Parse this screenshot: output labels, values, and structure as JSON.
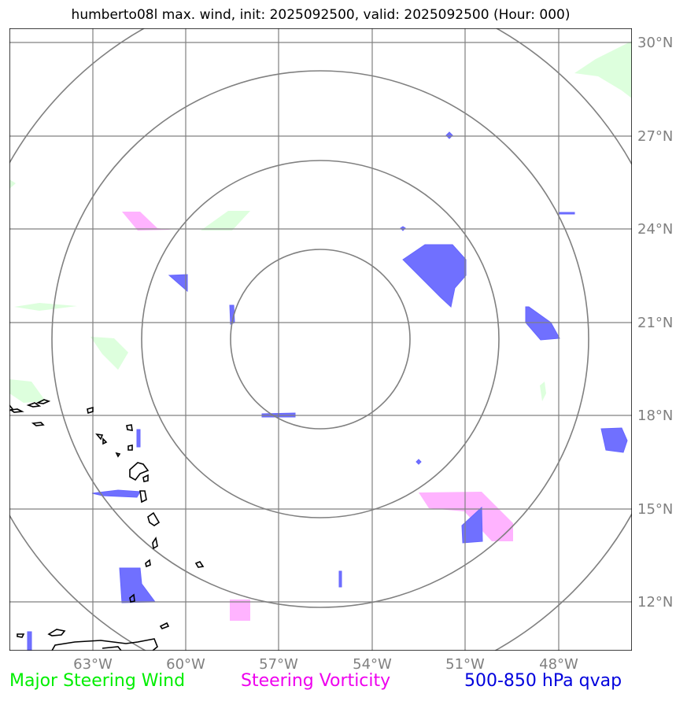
{
  "title": "humberto08l max. wind, init: 2025092500, valid: 2025092500 (Hour: 000)",
  "map": {
    "lon_range": [
      -65,
      -46.5
    ],
    "lat_range": [
      10.5,
      30.5
    ],
    "center": {
      "lon": -55.7,
      "lat": 20.6
    },
    "range_rings_deg": [
      2.9,
      5.6,
      8.3,
      11.0
    ],
    "lon_ticks": [
      {
        "value": -63,
        "label": "63°W"
      },
      {
        "value": -60,
        "label": "60°W"
      },
      {
        "value": -57,
        "label": "57°W"
      },
      {
        "value": -54,
        "label": "54°W"
      },
      {
        "value": -51,
        "label": "51°W"
      },
      {
        "value": -48,
        "label": "48°W"
      }
    ],
    "lat_ticks": [
      {
        "value": 12,
        "label": "12°N"
      },
      {
        "value": 15,
        "label": "15°N"
      },
      {
        "value": 18,
        "label": "18°N"
      },
      {
        "value": 21,
        "label": "21°N"
      },
      {
        "value": 24,
        "label": "24°N"
      },
      {
        "value": 27,
        "label": "27°N"
      },
      {
        "value": 30,
        "label": "30°N"
      }
    ],
    "grid": true,
    "colors": {
      "gridlines": "#808080",
      "rings": "#808080",
      "coastline": "#000000",
      "major_steering_wind": "#ddffdd",
      "steering_vorticity": "#ffb3ff",
      "qvap": "#7070ff"
    }
  },
  "legend": {
    "major_steering_wind": {
      "label": "Major Steering Wind",
      "color": "#00ee00"
    },
    "steering_vorticity": {
      "label": "Steering Vorticity",
      "color": "#ee00ee"
    },
    "qvap": {
      "label": "500-850 hPa qvap",
      "color": "#0000dd"
    }
  }
}
